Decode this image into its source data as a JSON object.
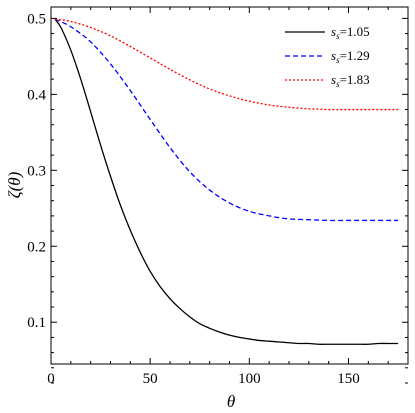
{
  "chart_data": {
    "type": "line",
    "xlabel": "θ",
    "ylabel": "ζ(θ)",
    "xlim": [
      0,
      180
    ],
    "ylim": [
      0.045,
      0.515
    ],
    "xticks": [
      0,
      50,
      100,
      150
    ],
    "xtick_labels": [
      "0",
      "50",
      "100",
      "150"
    ],
    "yticks": [
      0.1,
      0.2,
      0.3,
      0.4,
      0.5
    ],
    "ytick_labels": [
      "0.1",
      "0.2",
      "0.3",
      "0.4",
      "0.5"
    ],
    "grid": false,
    "legend_position": "top-right",
    "series": [
      {
        "name": "s_s=1.05",
        "legend_label": {
          "prefix": "s",
          "sub": "s",
          "suffix": "=1.05"
        },
        "color": "#000000",
        "dash": "solid",
        "x": [
          2,
          5,
          10,
          15,
          20,
          25,
          30,
          35,
          40,
          45,
          50,
          55,
          60,
          65,
          70,
          75,
          80,
          85,
          90,
          95,
          100,
          105,
          110,
          115,
          120,
          125,
          130,
          135,
          140,
          145,
          150,
          155,
          160,
          165,
          170,
          175
        ],
        "values": [
          0.499,
          0.488,
          0.458,
          0.42,
          0.377,
          0.333,
          0.292,
          0.254,
          0.221,
          0.192,
          0.167,
          0.147,
          0.131,
          0.118,
          0.107,
          0.098,
          0.092,
          0.087,
          0.083,
          0.08,
          0.078,
          0.076,
          0.075,
          0.074,
          0.073,
          0.072,
          0.072,
          0.071,
          0.071,
          0.071,
          0.071,
          0.071,
          0.071,
          0.072,
          0.072,
          0.072
        ]
      },
      {
        "name": "s_s=1.29",
        "legend_label": {
          "prefix": "s",
          "sub": "s",
          "suffix": "=1.29"
        },
        "color": "#0000ff",
        "dash": "dashed",
        "x": [
          2,
          10,
          20,
          30,
          40,
          50,
          60,
          70,
          80,
          90,
          100,
          110,
          120,
          130,
          140,
          150,
          160,
          170,
          175
        ],
        "values": [
          0.499,
          0.489,
          0.469,
          0.44,
          0.405,
          0.367,
          0.33,
          0.298,
          0.274,
          0.257,
          0.246,
          0.24,
          0.236,
          0.235,
          0.234,
          0.234,
          0.234,
          0.234,
          0.234
        ]
      },
      {
        "name": "s_s=1.83",
        "legend_label": {
          "prefix": "s",
          "sub": "s",
          "suffix": "=1.83"
        },
        "color": "#ff0000",
        "dash": "dotted",
        "x": [
          2,
          10,
          20,
          30,
          40,
          50,
          60,
          70,
          80,
          90,
          100,
          110,
          120,
          130,
          140,
          150,
          160,
          170,
          175
        ],
        "values": [
          0.499,
          0.496,
          0.488,
          0.477,
          0.463,
          0.448,
          0.433,
          0.419,
          0.407,
          0.398,
          0.391,
          0.386,
          0.383,
          0.381,
          0.38,
          0.38,
          0.38,
          0.38,
          0.38
        ]
      }
    ]
  }
}
